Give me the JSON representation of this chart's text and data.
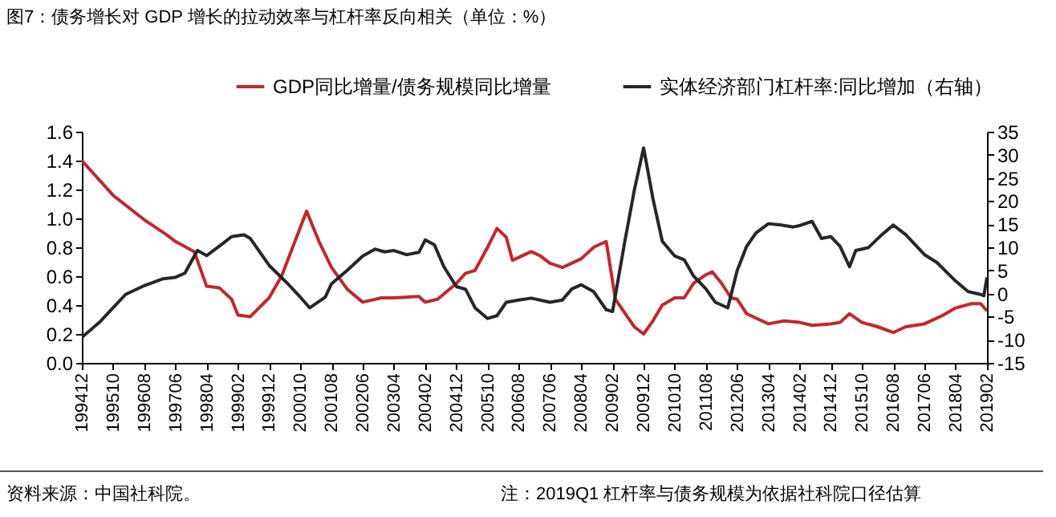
{
  "chart_data": {
    "type": "line",
    "title": "图7：债务增长对 GDP 增长的拉动效率与杠杆率反向相关（单位：%）",
    "annotations": [
      "资料来源：中国社科院。",
      "注：2019Q1 杠杆率与债务规模为依据社科院口径估算"
    ],
    "xlim": [
      "1994-12",
      "2019-02"
    ],
    "xticks": [
      {
        "value": "1994-12",
        "label": "199412"
      },
      {
        "value": "1995-10",
        "label": "199510"
      },
      {
        "value": "1996-08",
        "label": "199608"
      },
      {
        "value": "1997-06",
        "label": "199706"
      },
      {
        "value": "1998-04",
        "label": "199804"
      },
      {
        "value": "1999-02",
        "label": "199902"
      },
      {
        "value": "1999-12",
        "label": "199912"
      },
      {
        "value": "2000-10",
        "label": "200010"
      },
      {
        "value": "2001-08",
        "label": "200108"
      },
      {
        "value": "2002-06",
        "label": "200206"
      },
      {
        "value": "2003-04",
        "label": "200304"
      },
      {
        "value": "2004-02",
        "label": "200402"
      },
      {
        "value": "2004-12",
        "label": "200412"
      },
      {
        "value": "2005-10",
        "label": "200510"
      },
      {
        "value": "2006-08",
        "label": "200608"
      },
      {
        "value": "2007-06",
        "label": "200706"
      },
      {
        "value": "2008-04",
        "label": "200804"
      },
      {
        "value": "2009-02",
        "label": "200902"
      },
      {
        "value": "2009-12",
        "label": "200912"
      },
      {
        "value": "2010-10",
        "label": "201010"
      },
      {
        "value": "2011-08",
        "label": "201108"
      },
      {
        "value": "2012-06",
        "label": "201206"
      },
      {
        "value": "2013-04",
        "label": "201304"
      },
      {
        "value": "2014-02",
        "label": "201402"
      },
      {
        "value": "2014-12",
        "label": "201412"
      },
      {
        "value": "2015-10",
        "label": "201510"
      },
      {
        "value": "2016-08",
        "label": "201608"
      },
      {
        "value": "2017-06",
        "label": "201706"
      },
      {
        "value": "2018-04",
        "label": "201804"
      },
      {
        "value": "2019-02",
        "label": "201902"
      }
    ],
    "ylim": [
      0,
      1.6
    ],
    "yticks": [
      {
        "value": 0,
        "label": "0.0"
      },
      0.2,
      0.4,
      0.6,
      0.8,
      {
        "value": 1,
        "label": "1.0"
      },
      1.2,
      1.4,
      1.6
    ],
    "y2lim": [
      -15,
      35
    ],
    "y2ticks": [
      -15,
      -10,
      -5,
      0,
      5,
      10,
      15,
      20,
      25,
      30,
      35
    ],
    "legend": "top",
    "grid": false,
    "series": [
      {
        "name": "GDP同比增量/债务规模同比增量",
        "color": "#c0272d",
        "x": [
          "1994-12",
          "1995-10",
          "1996-08",
          "1997-03",
          "1997-06",
          "1997-12",
          "1998-04",
          "1998-08",
          "1998-12",
          "1999-02",
          "1999-06",
          "1999-12",
          "2000-04",
          "2000-12",
          "2001-04",
          "2001-08",
          "2002-01",
          "2002-06",
          "2002-12",
          "2003-04",
          "2003-12",
          "2004-02",
          "2004-06",
          "2004-12",
          "2005-03",
          "2005-06",
          "2005-10",
          "2006-01",
          "2006-04",
          "2006-06",
          "2006-08",
          "2006-12",
          "2007-03",
          "2007-06",
          "2007-10",
          "2007-12",
          "2008-04",
          "2008-08",
          "2008-12",
          "2009-03",
          "2009-09",
          "2009-12",
          "2010-03",
          "2010-06",
          "2010-10",
          "2011-01",
          "2011-04",
          "2011-08",
          "2011-10",
          "2012-01",
          "2012-04",
          "2012-06",
          "2012-09",
          "2012-12",
          "2013-04",
          "2013-09",
          "2014-02",
          "2014-06",
          "2014-12",
          "2015-03",
          "2015-06",
          "2015-10",
          "2016-03",
          "2016-08",
          "2016-12",
          "2017-06",
          "2017-12",
          "2018-04",
          "2018-09",
          "2018-12",
          "2019-02"
        ],
        "values": [
          1.4,
          1.16,
          0.99,
          0.89,
          0.84,
          0.77,
          0.53,
          0.52,
          0.44,
          0.33,
          0.32,
          0.45,
          0.6,
          1.05,
          0.84,
          0.66,
          0.51,
          0.42,
          0.45,
          0.45,
          0.46,
          0.42,
          0.44,
          0.55,
          0.62,
          0.64,
          0.8,
          0.93,
          0.87,
          0.71,
          0.73,
          0.77,
          0.74,
          0.69,
          0.66,
          0.68,
          0.72,
          0.8,
          0.84,
          0.44,
          0.25,
          0.2,
          0.29,
          0.4,
          0.45,
          0.45,
          0.55,
          0.61,
          0.63,
          0.55,
          0.45,
          0.44,
          0.34,
          0.31,
          0.27,
          0.29,
          0.28,
          0.26,
          0.27,
          0.28,
          0.34,
          0.28,
          0.25,
          0.21,
          0.25,
          0.27,
          0.33,
          0.38,
          0.41,
          0.41,
          0.36
        ]
      },
      {
        "name": "实体经济部门杠杆率:同比增加（右轴）",
        "color": "#262626",
        "axis": "y2",
        "x": [
          "1994-12",
          "1995-06",
          "1995-10",
          "1996-02",
          "1996-08",
          "1997-02",
          "1997-06",
          "1997-09",
          "1998-01",
          "1998-04",
          "1998-08",
          "1998-12",
          "1999-04",
          "1999-06",
          "1999-12",
          "2000-06",
          "2000-10",
          "2001-01",
          "2001-06",
          "2001-08",
          "2002-01",
          "2002-06",
          "2002-10",
          "2003-01",
          "2003-04",
          "2003-08",
          "2003-12",
          "2004-02",
          "2004-05",
          "2004-08",
          "2004-12",
          "2005-03",
          "2005-06",
          "2005-10",
          "2006-01",
          "2006-04",
          "2006-08",
          "2006-12",
          "2007-06",
          "2007-10",
          "2008-01",
          "2008-04",
          "2008-08",
          "2008-12",
          "2009-02",
          "2009-06",
          "2009-09",
          "2009-12",
          "2010-03",
          "2010-06",
          "2010-10",
          "2011-01",
          "2011-04",
          "2011-08",
          "2011-11",
          "2012-03",
          "2012-06",
          "2012-09",
          "2012-12",
          "2013-04",
          "2013-08",
          "2013-12",
          "2014-02",
          "2014-06",
          "2014-09",
          "2014-12",
          "2015-03",
          "2015-06",
          "2015-08",
          "2015-12",
          "2016-04",
          "2016-08",
          "2016-12",
          "2017-06",
          "2017-10",
          "2018-04",
          "2018-08",
          "2018-12",
          "2019-01",
          "2019-02"
        ],
        "values": [
          -9.5,
          -6,
          -3.1,
          -0.2,
          1.7,
          3.2,
          3.5,
          4.4,
          9.3,
          8.2,
          10.2,
          12.3,
          12.7,
          11.9,
          6.1,
          2.1,
          -0.8,
          -3.1,
          -0.8,
          2.1,
          5,
          8.1,
          9.6,
          9,
          9.3,
          8.4,
          8.9,
          11.6,
          10.5,
          5.8,
          1.5,
          0.9,
          -3.1,
          -5.4,
          -4.8,
          -1.9,
          -1.4,
          -1,
          -1.9,
          -1.4,
          1,
          1.9,
          0.4,
          -3.5,
          -3.9,
          11.3,
          22.3,
          31.5,
          20.6,
          11.3,
          8.1,
          7.3,
          3.8,
          1,
          -1.9,
          -3.1,
          5,
          10.2,
          13.1,
          15.1,
          14.8,
          14.4,
          14.7,
          15.6,
          11.9,
          12.3,
          10.2,
          5.8,
          9.3,
          9.9,
          12.5,
          14.8,
          12.7,
          8.4,
          6.7,
          2.7,
          0.4,
          -0.2,
          -0.5,
          3.5
        ]
      }
    ]
  }
}
